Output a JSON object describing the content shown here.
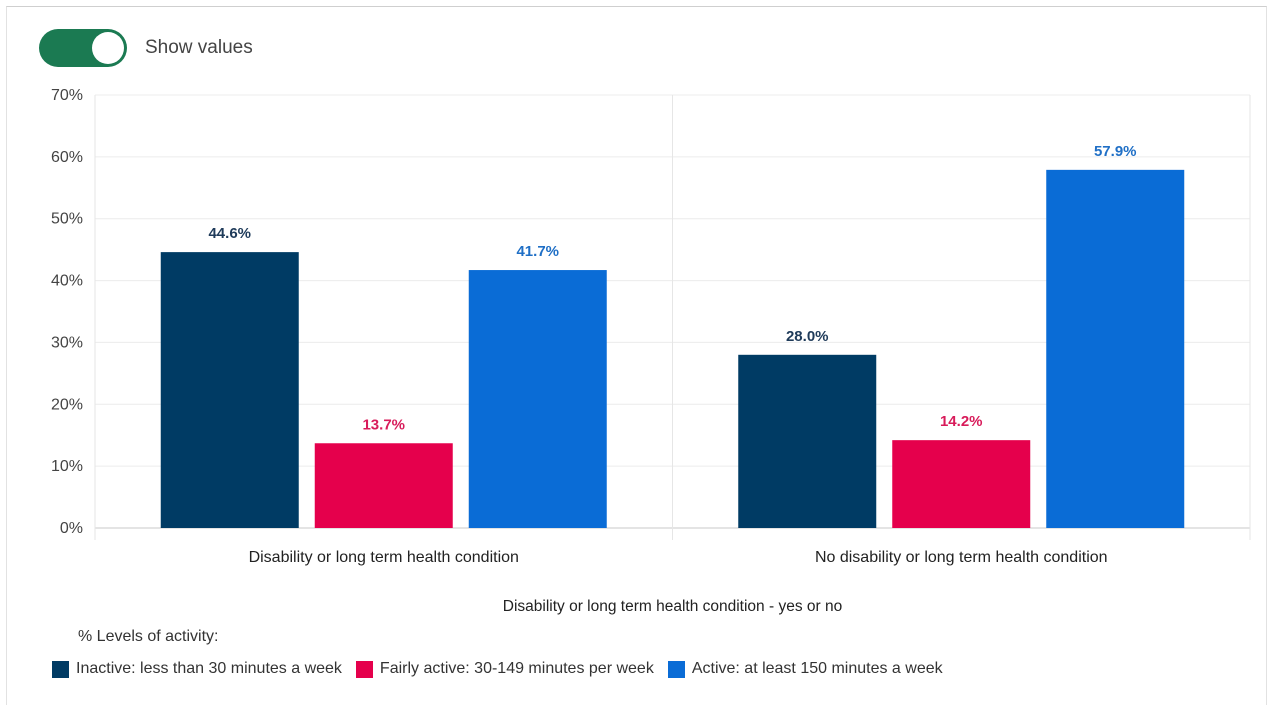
{
  "toggle": {
    "label": "Show values",
    "on": true,
    "color": "#1b7a52"
  },
  "chart_data": {
    "type": "bar",
    "categories": [
      "Disability or long term health condition",
      "No disability or long term health condition"
    ],
    "series": [
      {
        "name": "Inactive: less than 30 minutes a week",
        "values": [
          44.6,
          28.0
        ],
        "labels": [
          "44.6%",
          "28.0%"
        ],
        "color": "#003b64"
      },
      {
        "name": "Fairly active: 30-149 minutes per week",
        "values": [
          13.7,
          14.2
        ],
        "labels": [
          "13.7%",
          "14.2%"
        ],
        "color": "#e5004c"
      },
      {
        "name": "Active: at least 150 minutes a week",
        "values": [
          41.7,
          57.9
        ],
        "labels": [
          "41.7%",
          "57.9%"
        ],
        "color": "#0a6cd6"
      }
    ],
    "xlabel": "Disability or long term health condition - yes or no",
    "ylabel": "",
    "ylim": [
      0,
      70
    ],
    "yticks": [
      0,
      10,
      20,
      30,
      40,
      50,
      60,
      70
    ],
    "ytick_labels": [
      "0%",
      "10%",
      "20%",
      "30%",
      "40%",
      "50%",
      "60%",
      "70%"
    ],
    "grid": true,
    "legend_title": "% Levels of activity:",
    "legend_position": "bottom-left",
    "value_label_colors": [
      "#1f3b5a",
      "#d81b5a",
      "#1f6fc6"
    ]
  }
}
